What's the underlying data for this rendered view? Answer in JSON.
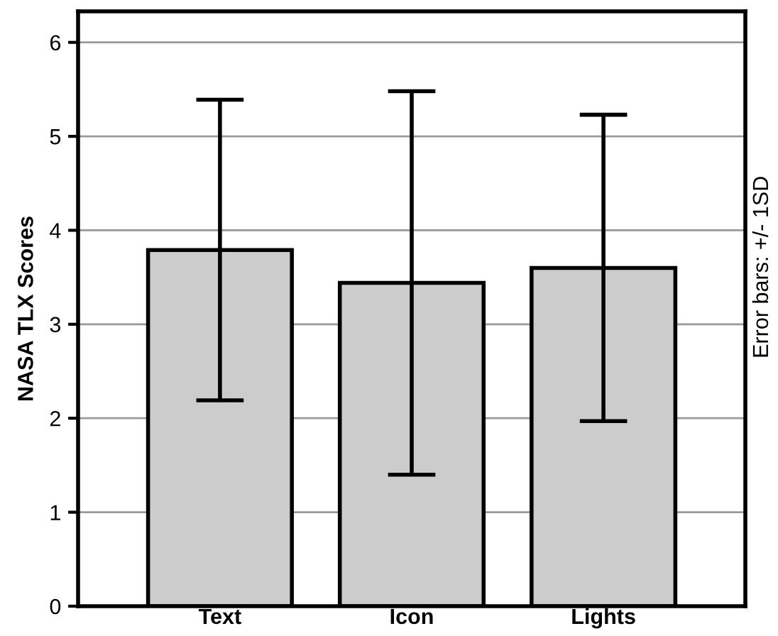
{
  "chart_data": {
    "type": "bar",
    "ylabel": "NASA TLX Scores",
    "categories": [
      "Text",
      "Icon",
      "Lights"
    ],
    "values": [
      3.79,
      3.44,
      3.6
    ],
    "errors": [
      1.6,
      2.04,
      1.63
    ],
    "color": "#cccccc",
    "ylim": [
      0,
      6.33
    ],
    "yticks": [
      0,
      1,
      2,
      3,
      4,
      5,
      6
    ],
    "grid": "y",
    "annotations": [
      "Error bars: +/- 1SD"
    ]
  }
}
